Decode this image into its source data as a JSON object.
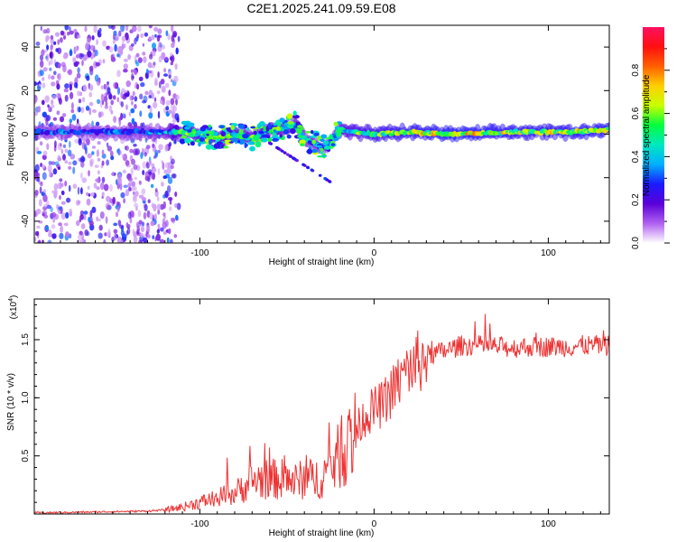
{
  "title": "C2E1.2025.241.09.59.E08",
  "chart_data": [
    {
      "type": "heatmap",
      "name": "spectrogram",
      "xlabel": "Height of straight line (km)",
      "ylabel": "Frequency (Hz)",
      "xlim": [
        -195,
        135
      ],
      "ylim": [
        -50,
        50
      ],
      "xticks": [
        -100,
        0,
        100
      ],
      "xtick_labels": [
        "-100",
        "0",
        "100"
      ],
      "yticks": [
        -40,
        -20,
        0,
        20,
        40
      ],
      "ytick_labels": [
        "-40",
        "-20",
        "0",
        "20",
        "40"
      ],
      "colorbar": {
        "label": "Normalized spectral amplitude",
        "range": [
          0,
          1
        ],
        "ticks": [
          0,
          0.2,
          0.4,
          0.6,
          0.8
        ],
        "tick_labels": [
          "0.0",
          "0.2",
          "0.4",
          "0.6",
          "0.8"
        ],
        "colormap": [
          "#ffffff",
          "#b060f0",
          "#5a00d8",
          "#1a1aff",
          "#00b0ff",
          "#00e8c0",
          "#00ff40",
          "#c8ff00",
          "#ffd000",
          "#ff6000",
          "#ff1010",
          "#ff1060"
        ]
      },
      "ridge": {
        "x": [
          -195,
          -150,
          -122,
          -110,
          -100,
          -90,
          -80,
          -70,
          -60,
          -50,
          -45,
          -40,
          -35,
          -30,
          -25,
          -20,
          -10,
          0,
          20,
          50,
          80,
          110,
          135
        ],
        "freq_hz": [
          1,
          1,
          1,
          1,
          0,
          -2,
          0,
          -2,
          2,
          3,
          5,
          -2,
          -4,
          -6,
          -4,
          2,
          1,
          0,
          1,
          0,
          1,
          1,
          2
        ],
        "peak_amplitude": [
          0.35,
          0.35,
          0.4,
          0.6,
          0.65,
          0.6,
          0.55,
          0.55,
          0.55,
          0.5,
          0.5,
          0.45,
          0.45,
          0.4,
          0.35,
          0.55,
          0.6,
          0.65,
          0.7,
          0.75,
          0.7,
          0.7,
          0.75
        ]
      },
      "noise_region_x": [
        -195,
        -120
      ]
    },
    {
      "type": "line",
      "name": "snr",
      "xlabel": "Height of straight line (km)",
      "ylabel": "SNR (10 * v/v)",
      "y_multiplier_label": "(x10",
      "y_multiplier_exp": "4",
      "xlim": [
        -195,
        135
      ],
      "ylim": [
        0,
        1.85
      ],
      "xticks": [
        -100,
        0,
        100
      ],
      "xtick_labels": [
        "-100",
        "0",
        "100"
      ],
      "yticks": [
        0.5,
        1.0,
        1.5
      ],
      "ytick_labels": [
        "0.5",
        "1.0",
        "1.5"
      ],
      "color": "#ee3333",
      "series": [
        {
          "name": "SNR",
          "x": [
            -195,
            -170,
            -150,
            -130,
            -120,
            -110,
            -100,
            -90,
            -80,
            -75,
            -70,
            -65,
            -60,
            -55,
            -50,
            -45,
            -40,
            -35,
            -30,
            -25,
            -20,
            -15,
            -10,
            -5,
            0,
            5,
            10,
            15,
            20,
            25,
            30,
            40,
            50,
            60,
            70,
            80,
            90,
            100,
            110,
            120,
            135
          ],
          "y": [
            0.01,
            0.015,
            0.02,
            0.025,
            0.035,
            0.06,
            0.1,
            0.14,
            0.18,
            0.23,
            0.28,
            0.3,
            0.3,
            0.3,
            0.3,
            0.28,
            0.3,
            0.3,
            0.32,
            0.4,
            0.5,
            0.6,
            0.72,
            0.85,
            0.9,
            0.95,
            1.05,
            1.15,
            1.25,
            1.3,
            1.36,
            1.4,
            1.45,
            1.45,
            1.44,
            1.43,
            1.44,
            1.44,
            1.44,
            1.45,
            1.45
          ]
        }
      ]
    }
  ]
}
